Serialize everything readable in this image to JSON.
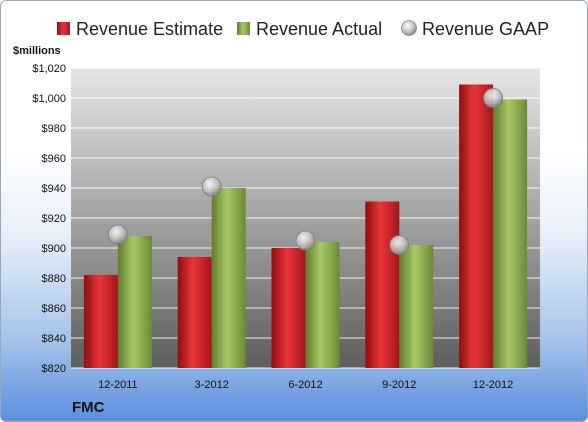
{
  "company": "FMC",
  "chart_data": {
    "type": "bar",
    "ylabel": "$millions",
    "ylim": [
      820,
      1020
    ],
    "ytick_step": 20,
    "ytick_labels": [
      "$820",
      "$840",
      "$860",
      "$880",
      "$900",
      "$920",
      "$940",
      "$960",
      "$980",
      "$1,000",
      "$1,020"
    ],
    "categories": [
      "12-2011",
      "3-2012",
      "6-2012",
      "9-2012",
      "12-2012"
    ],
    "series": [
      {
        "name": "Revenue Estimate",
        "kind": "bar",
        "color": "#cc1e24",
        "values": [
          882,
          894,
          900,
          931,
          1009
        ]
      },
      {
        "name": "Revenue Actual",
        "kind": "bar",
        "color": "#8fb04e",
        "values": [
          908,
          940,
          904,
          902,
          999
        ]
      },
      {
        "name": "Revenue GAAP",
        "kind": "marker",
        "color": "#b8b8b8",
        "values": [
          909,
          941,
          905,
          902,
          1000
        ]
      }
    ],
    "legend": "top",
    "grid": true
  }
}
